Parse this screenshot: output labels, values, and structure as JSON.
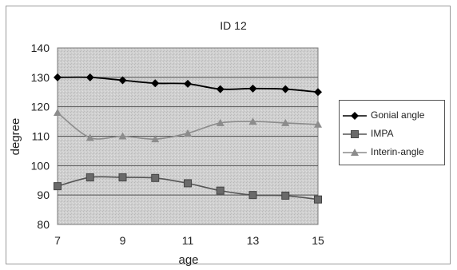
{
  "chart_data": {
    "type": "line",
    "title": "ID 12",
    "xlabel": "age",
    "ylabel": "degree",
    "x": [
      7,
      8,
      9,
      10,
      11,
      12,
      13,
      14,
      15
    ],
    "xticks": [
      "7",
      "9",
      "11",
      "13",
      "15"
    ],
    "yticks": [
      "80",
      "90",
      "100",
      "110",
      "120",
      "130",
      "140"
    ],
    "xlim": [
      7,
      15
    ],
    "ylim": [
      80,
      140
    ],
    "grid": true,
    "legend_position": "right",
    "series": [
      {
        "name": "Gonial angle",
        "marker": "diamond",
        "color": "#000000",
        "values": [
          130,
          130,
          129,
          128,
          127.8,
          126,
          126.2,
          126,
          125
        ]
      },
      {
        "name": "IMPA",
        "marker": "square",
        "color": "#555555",
        "values": [
          93,
          96,
          96,
          95.8,
          94,
          91.5,
          90,
          89.8,
          88.5
        ]
      },
      {
        "name": "Interin-angle",
        "marker": "triangle",
        "color": "#8c8c8c",
        "values": [
          118,
          109.5,
          110,
          109,
          111,
          114.5,
          115,
          114.5,
          114
        ]
      }
    ]
  }
}
